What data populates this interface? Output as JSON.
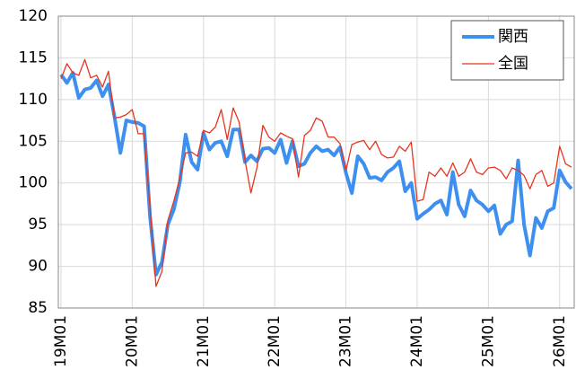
{
  "chart_data": {
    "type": "line",
    "categories": [
      "19M01",
      null,
      null,
      null,
      null,
      null,
      null,
      null,
      null,
      null,
      null,
      null,
      "20M01",
      null,
      null,
      null,
      null,
      null,
      null,
      null,
      null,
      null,
      null,
      null,
      "21M01",
      null,
      null,
      null,
      null,
      null,
      null,
      null,
      null,
      null,
      null,
      null,
      "22M01",
      null,
      null,
      null,
      null,
      null,
      null,
      null,
      null,
      null,
      null,
      null,
      "23M01",
      null,
      null,
      null,
      null,
      null,
      null,
      null,
      null,
      null,
      null,
      null,
      "24M01",
      null,
      null,
      null,
      null,
      null,
      null,
      null,
      null,
      null,
      null,
      null,
      "25M01",
      null,
      null,
      null,
      null,
      null,
      null,
      null,
      null,
      null,
      null,
      null,
      "26M01",
      null,
      null
    ],
    "series": [
      {
        "name": "関西",
        "color": "#3d8ff0",
        "width": 4,
        "values": [
          113,
          112,
          113.2,
          110.2,
          111.2,
          111.4,
          112.3,
          110.4,
          111.8,
          108,
          103.6,
          107.5,
          107.3,
          107.2,
          106.8,
          96,
          89,
          90.5,
          95,
          96.8,
          100,
          105.8,
          102.5,
          101.6,
          106,
          104,
          104.8,
          105,
          103.2,
          106.4,
          106.4,
          102.5,
          103.3,
          102.6,
          104.1,
          104.2,
          103.6,
          105.2,
          102.4,
          105,
          102,
          102.3,
          103.6,
          104.4,
          103.8,
          104,
          103.3,
          104.3,
          101.2,
          98.8,
          103.2,
          102.3,
          100.6,
          100.7,
          100.3,
          101.3,
          101.8,
          102.6,
          99,
          100,
          95.7,
          96.3,
          96.8,
          97.5,
          97.9,
          96.2,
          101.3,
          97.4,
          96,
          99.1,
          97.9,
          97.4,
          96.6,
          97.3,
          93.9,
          95,
          95.4,
          102.7,
          95,
          91.3,
          95.8,
          94.6,
          96.6,
          97,
          101.5,
          100.1,
          99.3
        ]
      },
      {
        "name": "全国",
        "color": "#e8341c",
        "width": 1.3,
        "values": [
          112.5,
          114.3,
          113.2,
          112.9,
          114.8,
          112.6,
          112.9,
          111.5,
          113.4,
          107.8,
          107.9,
          108.2,
          108.8,
          105.9,
          105.9,
          97,
          87.6,
          89.4,
          95.5,
          97.8,
          100.5,
          103.6,
          103.7,
          103.2,
          106.3,
          106,
          106.7,
          108.8,
          105.2,
          109,
          107.3,
          102.7,
          98.8,
          101.8,
          106.9,
          105.5,
          105,
          106,
          105.6,
          105.3,
          100.7,
          105.7,
          106.3,
          107.8,
          107.4,
          105.5,
          105.5,
          104.7,
          101.5,
          104.6,
          104.9,
          105.1,
          104,
          105,
          103.4,
          103,
          103.1,
          104.4,
          103.8,
          104.9,
          97.8,
          98,
          101.3,
          100.8,
          101.8,
          100.8,
          102.4,
          100.8,
          101.3,
          102.9,
          101.3,
          101,
          101.8,
          101.9,
          101.5,
          100.5,
          101.8,
          101.5,
          100.9,
          99.3,
          101,
          101.5,
          99.6,
          100,
          104.4,
          102.3,
          101.9
        ]
      }
    ],
    "ylim": [
      85,
      120
    ],
    "yticks": [
      85,
      90,
      95,
      100,
      105,
      110,
      115,
      120
    ],
    "grid": true,
    "legend": "upper right"
  }
}
